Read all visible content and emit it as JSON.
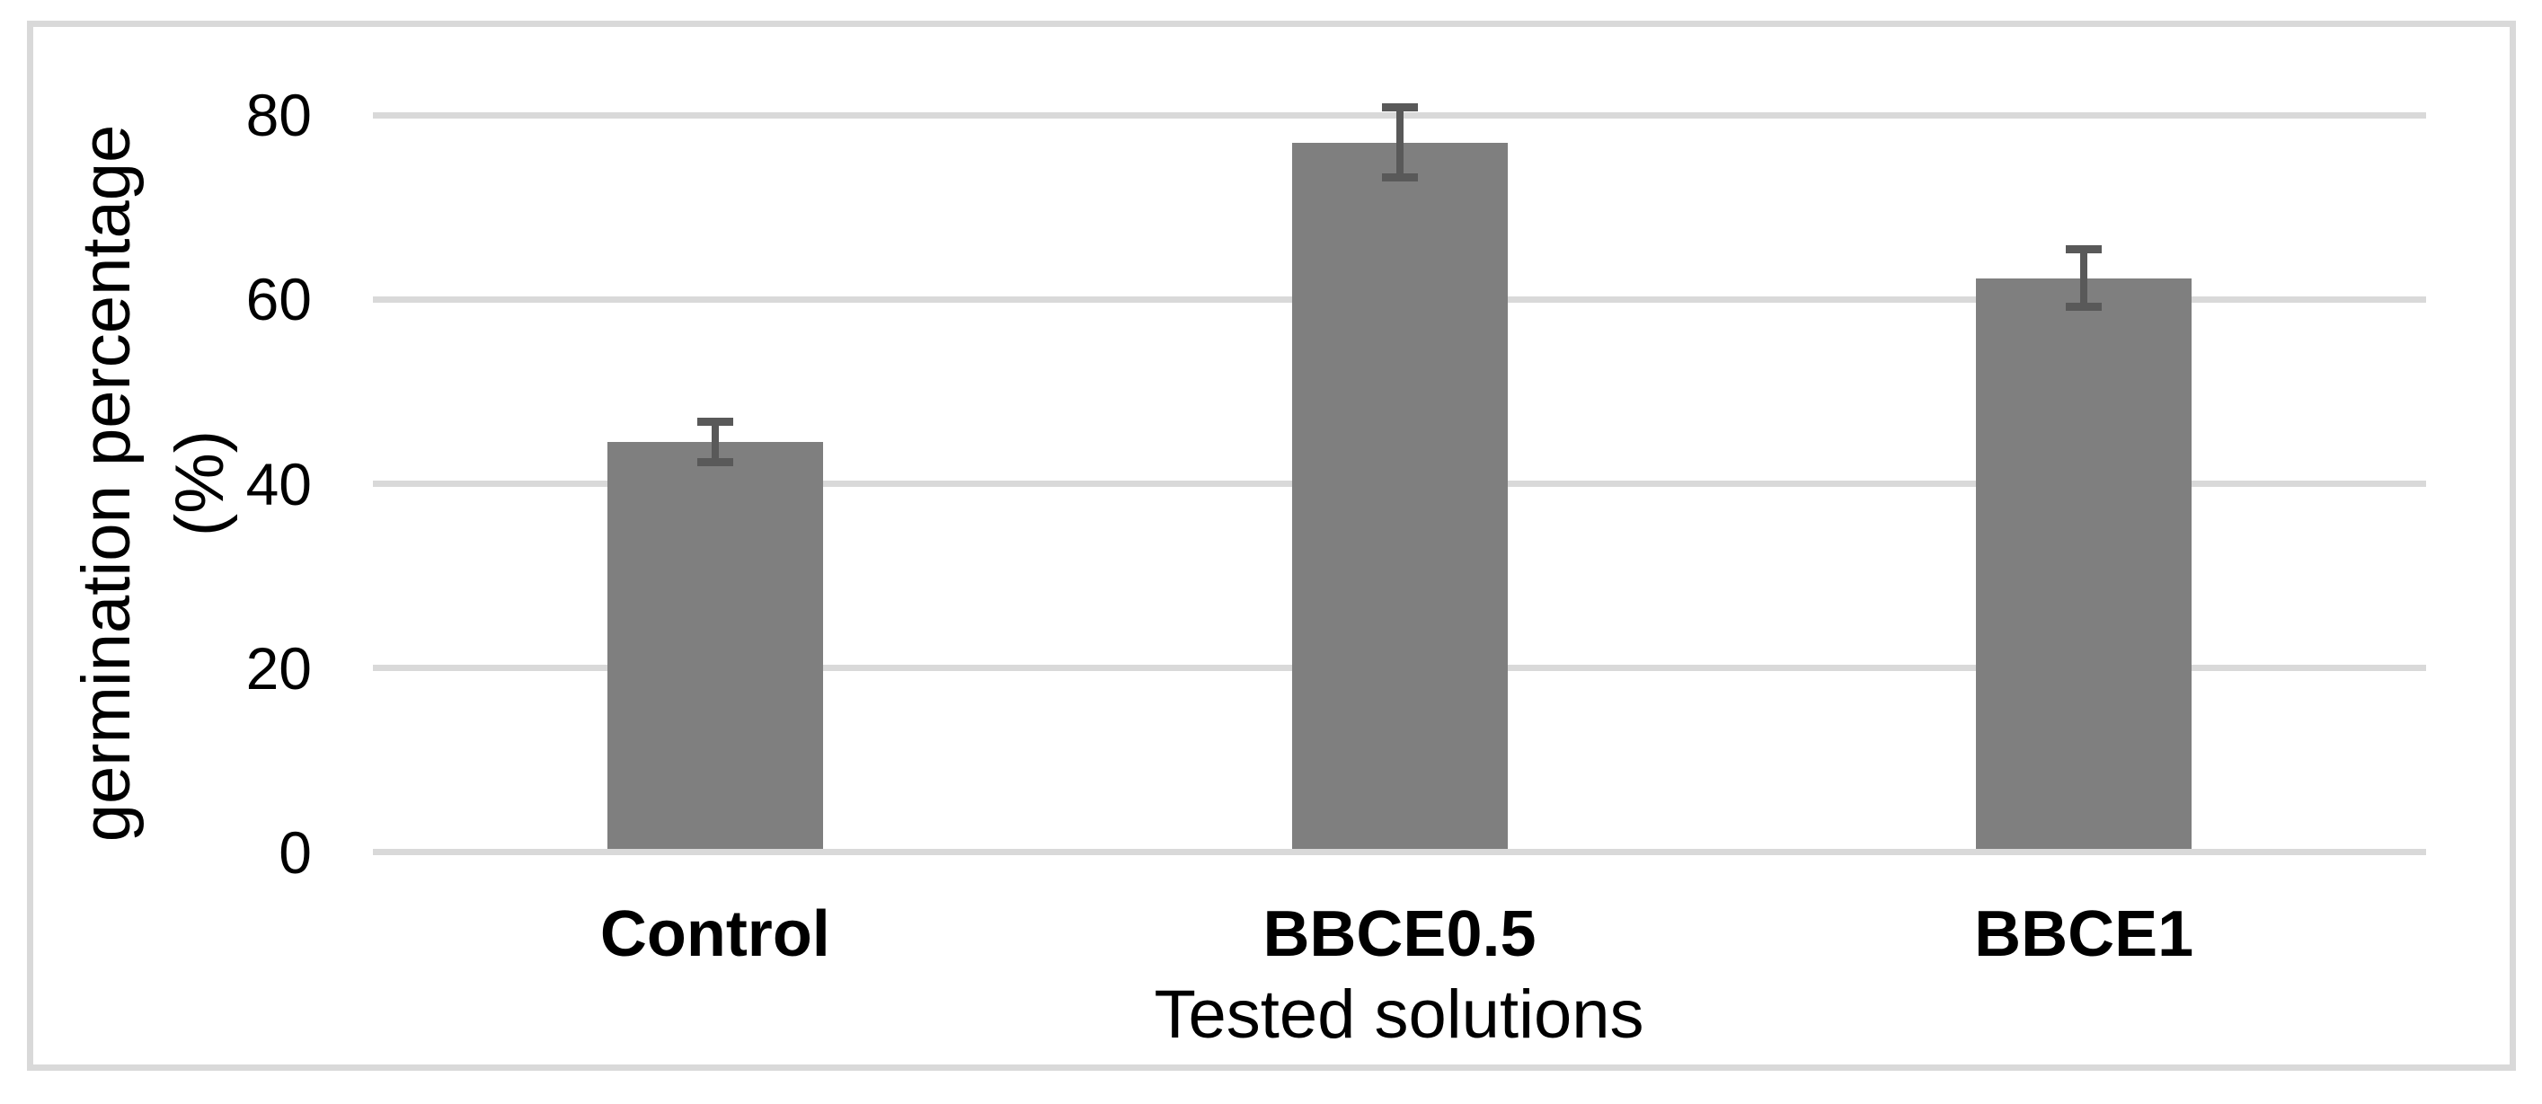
{
  "chart_data": {
    "type": "bar",
    "title": "",
    "categories": [
      "Control",
      "BBCE0.5",
      "BBCE1"
    ],
    "values": [
      44.5,
      77,
      62.3
    ],
    "error_bars": [
      2.2,
      3.8,
      3.1
    ],
    "xlabel": "Tested solutions",
    "ylabel_line1": "germination percentage",
    "ylabel_line2": "(%)",
    "yticks": [
      0,
      20,
      40,
      60,
      80
    ],
    "ylim": [
      0,
      80
    ],
    "grid": "horizontal",
    "legend_position": "none",
    "bar_color": "#7F7F7F",
    "error_color": "#595959",
    "gridline_color": "#D9D9D9",
    "axis_line_color": "#D9D9D9",
    "frame_border_color": "#D9D9D9",
    "background_color": "#FFFFFF"
  }
}
